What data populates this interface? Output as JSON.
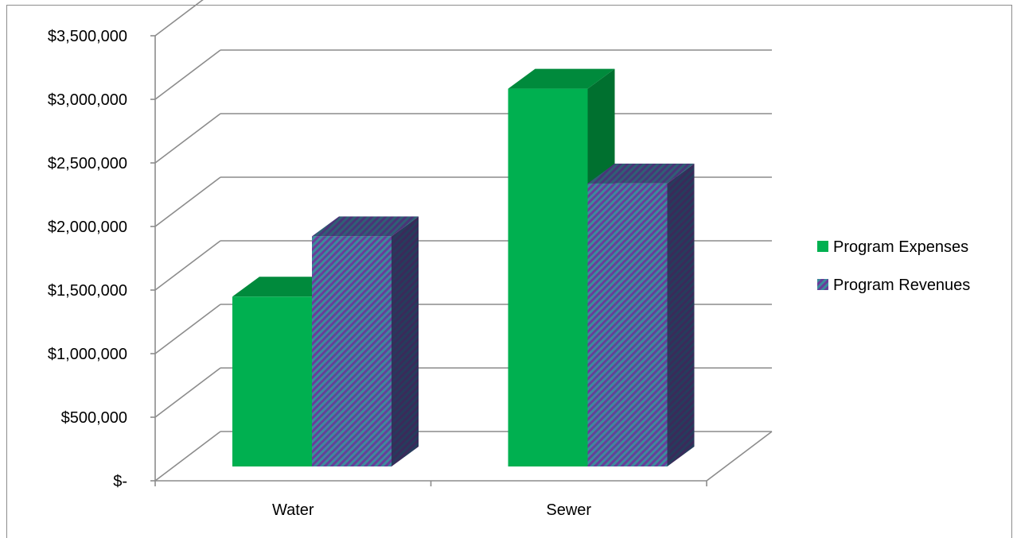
{
  "chart_data": {
    "type": "bar",
    "title": "",
    "xlabel": "",
    "ylabel": "",
    "categories": [
      "Water",
      "Sewer"
    ],
    "series": [
      {
        "name": "Program Expenses",
        "values": [
          1380000,
          3070000
        ]
      },
      {
        "name": "Program Revenues",
        "values": [
          1870000,
          2300000
        ]
      }
    ],
    "ylim": [
      0,
      3500000
    ],
    "y_ticks": [
      0,
      500000,
      1000000,
      1500000,
      2000000,
      2500000,
      3000000,
      3500000
    ],
    "y_tick_labels": [
      "$-",
      "$500,000",
      "$1,000,000",
      "$1,500,000",
      "$2,000,000",
      "$2,500,000",
      "$3,000,000",
      "$3,500,000"
    ],
    "grid": true,
    "style_3d": true,
    "legend_position": "right",
    "colors": {
      "Program Expenses": {
        "front": "#00b050",
        "top": "#008a3c",
        "side": "#00702f"
      },
      "Program Revenues": {
        "stripe_a": "#3c8c9c",
        "stripe_b": "#6a3c9a",
        "side_a": "#263c5c",
        "side_b": "#3a2a5a"
      },
      "gridline": "#8c8c8c"
    }
  }
}
